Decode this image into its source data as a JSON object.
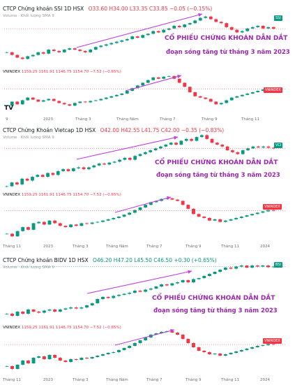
{
  "chart_data": [
    {
      "type": "candlestick",
      "title": "CTCP Chứng khoán SSI",
      "interval": "1D",
      "exchange": "HSX",
      "ohlc_text": "O33.60 H34.00 L33.35 C33.85 −0.05 (−0.15%)",
      "volume_label": "Volume · Khối lượng SMA 9",
      "last_tag": "SSI",
      "annotation_1": "CỔ PHIẾU CHỨNG KHOÁN DẪN DẮT",
      "annotation_2": "đoạn sóng tăng từ tháng 3 năm 2023",
      "x_ticks": [
        "9",
        "2023",
        "Tháng 3",
        "Tháng Năm",
        "Tháng 7",
        "Tháng 9",
        "Tháng 11"
      ],
      "closes": [
        25,
        24,
        23,
        22.5,
        23.5,
        24,
        25,
        24.5,
        26,
        25.5,
        25,
        26,
        26.5,
        26,
        25.5,
        25,
        26,
        27,
        27.5,
        28,
        28.5,
        29,
        29.5,
        30,
        31,
        30.5,
        31.5,
        32,
        33,
        32.5,
        33.5,
        34,
        35,
        34.5,
        35.5,
        36,
        37,
        38,
        38.5,
        37.5,
        36.5,
        36,
        34.5,
        33.5,
        32.5,
        33,
        34,
        34.5,
        35,
        34,
        34.5,
        33.9
      ],
      "ylim": [
        21,
        40
      ]
    },
    {
      "type": "candlestick",
      "title": "VNINDEX",
      "ohlc_text": "1159.25 1161.91 1146.75 1154.70 −7.52 (−0.65%)",
      "last_tag": "VNINDEX",
      "closes": [
        1030,
        1060,
        1040,
        1070,
        1090,
        1075,
        1060,
        1070,
        1080,
        1065,
        1050,
        1040,
        1030,
        1050,
        1060,
        1055,
        1065,
        1070,
        1080,
        1090,
        1100,
        1110,
        1120,
        1140,
        1160,
        1180,
        1200,
        1220,
        1240,
        1230,
        1245,
        1250,
        1230,
        1200,
        1170,
        1130,
        1100,
        1090,
        1080,
        1060,
        1040,
        1050,
        1070,
        1090,
        1100,
        1110,
        1120,
        1130,
        1140,
        1150,
        1155,
        1154.7
      ],
      "ylim": [
        1000,
        1270
      ]
    },
    {
      "type": "candlestick",
      "title": "CTCP Chứng Khoán Vietcap",
      "interval": "1D",
      "exchange": "HSX",
      "ohlc_text": "O42.00 H42.55 L41.75 C42.00 −0.35 (−0.83%)",
      "volume_label": "Volume · Khối lượng SMA 9",
      "last_tag": "VCI",
      "annotation_1": "CỔ PHIẾU CHỨNG KHOÁN DẪN DẮT",
      "annotation_2": "đoạn sóng tăng từ tháng 3 năm 2023",
      "x_ticks": [
        "Tháng 11",
        "2023",
        "Tháng 3",
        "Tháng Năm",
        "Tháng 7",
        "Tháng 9",
        "Tháng 11",
        "2024"
      ],
      "closes": [
        22,
        24,
        23,
        26,
        25,
        27,
        28,
        27,
        29,
        28,
        30,
        31,
        30,
        31.5,
        32,
        31,
        32,
        33,
        34,
        33.5,
        34.5,
        35,
        36,
        37,
        36,
        38,
        39,
        40,
        41,
        42,
        43,
        44,
        45,
        44,
        46,
        47,
        46,
        48,
        49,
        47,
        45,
        44,
        43,
        41,
        40,
        39,
        41,
        42,
        43,
        42.5,
        43,
        42.35,
        42
      ],
      "ylim": [
        20,
        51
      ]
    },
    {
      "type": "candlestick",
      "title": "VNINDEX",
      "ohlc_text": "1159.25 1161.91 1146.75 1154.70 −7.52 (−0.65%)",
      "last_tag": "VNINDEX",
      "closes": [
        980,
        960,
        1000,
        1030,
        1010,
        1060,
        1070,
        1050,
        1080,
        1060,
        1040,
        1030,
        1050,
        1040,
        1060,
        1055,
        1065,
        1070,
        1080,
        1090,
        1100,
        1110,
        1125,
        1140,
        1160,
        1180,
        1200,
        1220,
        1230,
        1245,
        1250,
        1240,
        1230,
        1200,
        1170,
        1130,
        1110,
        1100,
        1080,
        1090,
        1070,
        1080,
        1090,
        1100,
        1110,
        1120,
        1130,
        1140,
        1150,
        1160,
        1154.7
      ],
      "ylim": [
        940,
        1270
      ]
    },
    {
      "type": "candlestick",
      "title": "CTCP Chứng khoán BIDV",
      "interval": "1D",
      "exchange": "HSX",
      "ohlc_text": "O46.20 H47.20 L45.50 C46.50 +0.30 (+0.65%)",
      "volume_label": "Volume · Khối lượng SMA 9",
      "last_tag": "BSI",
      "annotation_1": "CỔ PHIẾU CHỨNG KHOÁN DẪN DẮT",
      "annotation_2": "đoạn sóng tăng từ tháng 3 năm 2023",
      "closes": [
        24,
        23,
        25,
        24,
        26,
        25,
        24.5,
        25.5,
        26,
        25,
        26,
        26.5,
        27,
        26.5,
        27,
        28,
        29,
        31,
        32,
        31.5,
        32.5,
        33,
        33.5,
        34,
        35,
        34.5,
        35.5,
        36,
        37,
        38,
        37.5,
        38.5,
        39,
        40,
        39,
        40.5,
        41,
        42,
        43,
        44,
        45,
        46,
        45.5,
        46.5,
        47,
        46,
        47,
        46.5,
        47,
        46.2,
        46.5
      ],
      "ylim": [
        21,
        49
      ]
    },
    {
      "type": "candlestick",
      "title": "VNINDEX",
      "ohlc_text": "1159.25 1161.91 1146.75 1154.70 −7.52 (−0.65%)",
      "last_tag": "VNINDEX",
      "x_ticks": [
        "Tháng 11",
        "2023",
        "Tháng 3",
        "Tháng Năm",
        "Tháng 7",
        "Tháng 9",
        "Tháng 11",
        "2024"
      ],
      "closes": [
        1000,
        980,
        1010,
        1040,
        1020,
        1060,
        1070,
        1050,
        1080,
        1060,
        1040,
        1030,
        1050,
        1045,
        1060,
        1055,
        1065,
        1075,
        1085,
        1095,
        1100,
        1115,
        1130,
        1145,
        1165,
        1185,
        1205,
        1225,
        1235,
        1245,
        1250,
        1240,
        1225,
        1195,
        1165,
        1135,
        1110,
        1100,
        1085,
        1090,
        1075,
        1085,
        1095,
        1105,
        1115,
        1125,
        1135,
        1145,
        1150,
        1158,
        1154.7
      ],
      "ylim": [
        940,
        1270
      ]
    }
  ],
  "colors": {
    "up": "#089981",
    "down": "#f23645",
    "annotation": "#9c27b0",
    "arrow": "#c040e0",
    "axis_text": "#6a6d78"
  }
}
